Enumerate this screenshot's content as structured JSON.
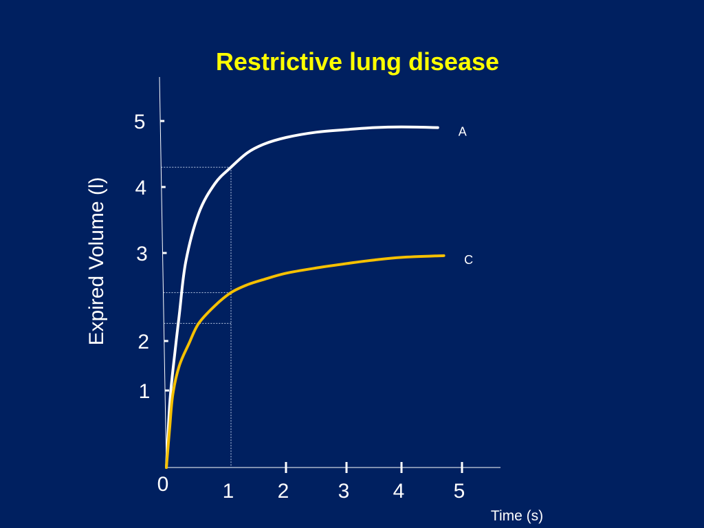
{
  "chart_data": {
    "type": "line",
    "title": "Restrictive lung disease",
    "xlabel": "Time (s)",
    "ylabel": "Expired Volume (l)",
    "xlim": [
      0,
      5.5
    ],
    "x_ticks": [
      "1",
      "2",
      "3",
      "4",
      "5"
    ],
    "y_ticks": [
      "1",
      "2",
      "3",
      "4",
      "5"
    ],
    "origin_label": "0",
    "grid": false,
    "series": [
      {
        "name": "A",
        "color": "#ffffff",
        "points": [
          [
            0,
            0
          ],
          [
            0.05,
            0.8
          ],
          [
            0.1,
            1.4
          ],
          [
            0.2,
            2.3
          ],
          [
            0.3,
            2.9
          ],
          [
            0.5,
            3.6
          ],
          [
            0.75,
            4.05
          ],
          [
            1.0,
            4.3
          ],
          [
            1.3,
            4.52
          ],
          [
            1.6,
            4.65
          ],
          [
            2.0,
            4.75
          ],
          [
            2.5,
            4.83
          ],
          [
            3.0,
            4.87
          ],
          [
            3.5,
            4.9
          ],
          [
            4.0,
            4.91
          ],
          [
            4.6,
            4.9
          ]
        ]
      },
      {
        "name": "C",
        "color": "#f5c000",
        "points": [
          [
            0,
            0
          ],
          [
            0.05,
            0.5
          ],
          [
            0.1,
            0.95
          ],
          [
            0.2,
            1.5
          ],
          [
            0.35,
            1.95
          ],
          [
            0.5,
            2.2
          ],
          [
            0.75,
            2.4
          ],
          [
            1.0,
            2.55
          ],
          [
            1.3,
            2.64
          ],
          [
            1.6,
            2.7
          ],
          [
            2.0,
            2.77
          ],
          [
            2.5,
            2.83
          ],
          [
            3.0,
            2.88
          ],
          [
            3.5,
            2.92
          ],
          [
            4.0,
            2.95
          ],
          [
            4.7,
            2.97
          ]
        ]
      }
    ],
    "reference_lines": {
      "x": 1.0,
      "y_values": [
        4.3,
        2.55,
        2.2
      ]
    }
  }
}
